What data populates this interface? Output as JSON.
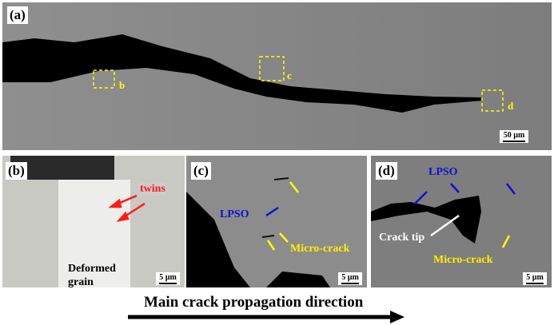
{
  "panels": {
    "a": {
      "label": "(a)",
      "scale": "50 µm",
      "boxes": [
        "b",
        "c",
        "d"
      ]
    },
    "b": {
      "label": "(b)",
      "scale": "5 µm",
      "annotations": {
        "twins": "twins",
        "grain": "Deformed grain"
      }
    },
    "c": {
      "label": "(c)",
      "scale": "5 µm",
      "annotations": {
        "lpso": "LPSO",
        "microcrack": "Micro-crack"
      }
    },
    "d": {
      "label": "(d)",
      "scale": "5 µm",
      "annotations": {
        "lpso": "LPSO",
        "tip": "Crack tip",
        "microcrack": "Micro-crack"
      }
    }
  },
  "caption": "Main crack propagation direction",
  "colors": {
    "twins": "#ff1a1a",
    "lpso": "#1010d0",
    "microcrack": "#ffee00",
    "tip": "#ffffff"
  }
}
